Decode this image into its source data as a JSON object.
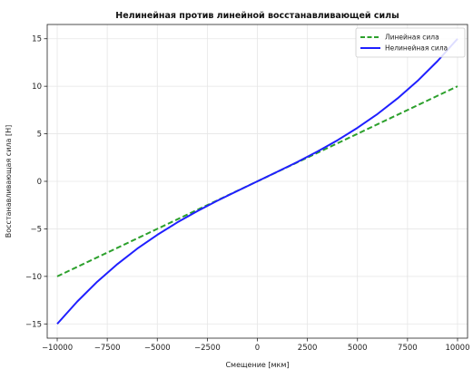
{
  "chart_data": {
    "type": "line",
    "title": "Нелинейная против линейной восстанавливающей силы",
    "xlabel": "Смещение [мкм]",
    "ylabel": "Восстанавливающая сила [Н]",
    "xlim": [
      -10500,
      10500
    ],
    "ylim": [
      -16.5,
      16.5
    ],
    "x_ticks": [
      -10000,
      -7500,
      -5000,
      -2500,
      0,
      2500,
      5000,
      7500,
      10000
    ],
    "y_ticks": [
      -15,
      -10,
      -5,
      0,
      5,
      10,
      15
    ],
    "grid": true,
    "legend_position": "top-right",
    "series": [
      {
        "name": "Линейная сила",
        "color": "#2ca02c",
        "style": "dashed",
        "x": [
          -10000,
          10000
        ],
        "y": [
          -10,
          10
        ]
      },
      {
        "name": "Нелинейная сила",
        "color": "#1f1fff",
        "style": "solid",
        "x": [
          -10000,
          -9000,
          -8000,
          -7000,
          -6000,
          -5000,
          -4000,
          -3000,
          -2000,
          -1000,
          0,
          1000,
          2000,
          3000,
          4000,
          5000,
          6000,
          7000,
          8000,
          9000,
          10000
        ],
        "y": [
          -15,
          -12.65,
          -10.56,
          -8.72,
          -7.08,
          -5.63,
          -4.32,
          -3.14,
          -2.04,
          -1.01,
          0,
          1.01,
          2.04,
          3.14,
          4.32,
          5.63,
          7.08,
          8.72,
          10.56,
          12.65,
          15
        ]
      }
    ]
  }
}
